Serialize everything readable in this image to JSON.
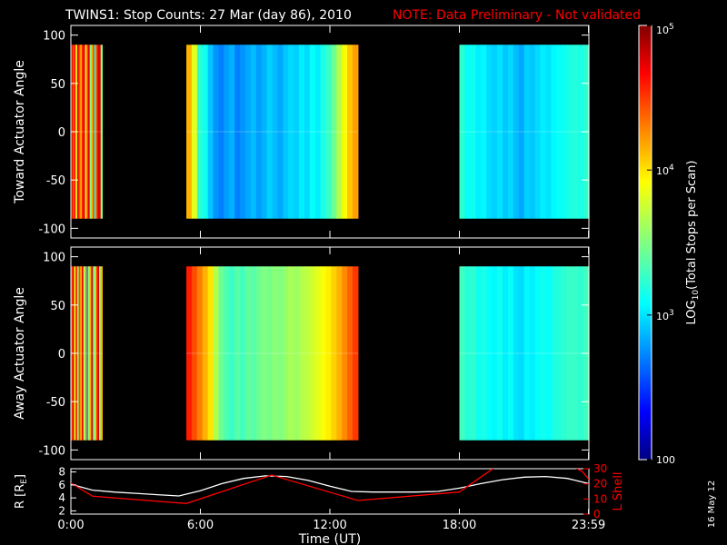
{
  "title": {
    "main": "TWINS1: Stop Counts: 27 Mar (day  86), 2010",
    "note": "NOTE: Data Preliminary - Not validated",
    "note_color": "#ff0000"
  },
  "chart_data": [
    {
      "type": "heatmap",
      "ylabel": "Toward Actuator Angle",
      "xlim": [
        0,
        24
      ],
      "ylim": [
        -110,
        110
      ],
      "yticks": [
        -100,
        -50,
        0,
        50,
        100
      ],
      "ytick_labels": [
        "-100",
        "-50",
        "0",
        "50",
        "100"
      ],
      "angle_range": [
        -90,
        90
      ],
      "segments": [
        {
          "t_start": 0.0,
          "t_end": 1.45,
          "profile": [
            9,
            8,
            8.5,
            6,
            9,
            8,
            7,
            8.5,
            9,
            6,
            8,
            9,
            5,
            7,
            8,
            4,
            8,
            9,
            9,
            5
          ]
        },
        {
          "t_start": 5.35,
          "t_end": 13.3,
          "profile": [
            7,
            6,
            4.2,
            3.9,
            3.2,
            2.7,
            2.5,
            2.8,
            3.0,
            2.5,
            2.7,
            2.9,
            3.1,
            2.8,
            3.0,
            3.3,
            3.1,
            2.9,
            3.2,
            3.4,
            3.3,
            3.6,
            3.4,
            3.8,
            3.6,
            4.0,
            4.3,
            4.8,
            5.5,
            6.2,
            6.8,
            7.2
          ]
        },
        {
          "t_start": 18.0,
          "t_end": 24.0,
          "profile": [
            4.2,
            3.8,
            3.9,
            3.6,
            3.7,
            3.4,
            3.3,
            3.5,
            3.2,
            3.4,
            3.1,
            2.9,
            3.3,
            3.2,
            3.4,
            3.6,
            3.5,
            3.7,
            3.8,
            3.9,
            4.0,
            4.1,
            4.0,
            4.2
          ]
        }
      ]
    },
    {
      "type": "heatmap",
      "ylabel": "Away Actuator Angle",
      "xlim": [
        0,
        24
      ],
      "ylim": [
        -110,
        110
      ],
      "yticks": [
        -100,
        -50,
        0,
        50,
        100
      ],
      "ytick_labels": [
        "-100",
        "-50",
        "0",
        "50",
        "100"
      ],
      "angle_range": [
        -90,
        90
      ],
      "segments": [
        {
          "t_start": 0.0,
          "t_end": 1.45,
          "profile": [
            8,
            9,
            6,
            8.5,
            5,
            8,
            7,
            9,
            6,
            3.5,
            8,
            5,
            7,
            9,
            4,
            6,
            8,
            9,
            5,
            7
          ]
        },
        {
          "t_start": 5.35,
          "t_end": 13.3,
          "profile": [
            8.5,
            8,
            7.5,
            7,
            6.5,
            5.5,
            4.8,
            4.5,
            4.3,
            4.6,
            4.4,
            4.7,
            4.6,
            4.8,
            5.0,
            4.9,
            5.1,
            5.0,
            5.2,
            5.4,
            5.3,
            5.5,
            5.6,
            5.8,
            6.0,
            6.2,
            6.4,
            6.7,
            7.0,
            7.4,
            7.8,
            8.2
          ]
        },
        {
          "t_start": 18.0,
          "t_end": 24.0,
          "profile": [
            4.4,
            4.1,
            4.2,
            3.9,
            4.0,
            3.8,
            3.7,
            3.9,
            3.6,
            3.8,
            3.5,
            3.4,
            3.7,
            3.6,
            3.8,
            3.9,
            3.8,
            4.0,
            4.1,
            4.2,
            4.3,
            4.3,
            4.2,
            4.4
          ]
        }
      ]
    },
    {
      "type": "line",
      "ylabel": "R [R",
      "ylabel_sub": "E",
      "ylabel_close": "]",
      "ylabel_right": "L Shell",
      "xlabel": "Time (UT)",
      "xlim": [
        0,
        24
      ],
      "xticks": [
        0,
        6,
        12,
        18,
        23.983
      ],
      "xtick_labels": [
        "0:00",
        "6:00",
        "12:00",
        "18:00",
        "23:59"
      ],
      "ylim": [
        1.5,
        8.5
      ],
      "yticks": [
        2,
        4,
        6,
        8
      ],
      "ytick_labels": [
        "2",
        "4",
        "6",
        "8"
      ],
      "ylim_right": [
        0,
        30
      ],
      "yticks_right": [
        0,
        10,
        20,
        30
      ],
      "ytick_labels_right": [
        "0",
        "10",
        "20",
        "30"
      ],
      "series": [
        {
          "color": "#ffffff",
          "axis": "left",
          "x": [
            0,
            1,
            2,
            3,
            4,
            5,
            6,
            7,
            8,
            9,
            10,
            11,
            12,
            13,
            14,
            15,
            16,
            17,
            18,
            19,
            20,
            21,
            22,
            23,
            24
          ],
          "y": [
            6.1,
            5.2,
            4.9,
            4.7,
            4.5,
            4.3,
            5.1,
            6.2,
            7.0,
            7.4,
            7.3,
            6.7,
            5.8,
            5.0,
            4.9,
            4.9,
            4.9,
            5.0,
            5.5,
            6.2,
            6.8,
            7.2,
            7.3,
            7.0,
            6.2
          ]
        },
        {
          "color": "#ff0000",
          "axis": "right",
          "x": [
            0,
            1,
            5.35,
            9.3,
            13.3,
            18.0,
            19.6
          ],
          "y": [
            20.6,
            11.8,
            7.0,
            25.8,
            9.0,
            14.6,
            30.5
          ]
        },
        {
          "color": "#ff0000",
          "axis": "right",
          "x": [
            23.4,
            23.7,
            24
          ],
          "y": [
            30.5,
            28.0,
            23.0
          ]
        }
      ]
    }
  ],
  "colorbar": {
    "label": "LOG",
    "label_sub": "10",
    "label_rest": "(Total Stops per Scan)",
    "ticks": [
      {
        "base": "10",
        "exp": "5",
        "pos": 0.0
      },
      {
        "base": "10",
        "exp": "4",
        "pos": 0.333
      },
      {
        "base": "10",
        "exp": "3",
        "pos": 0.667
      },
      {
        "base": "100",
        "exp": "",
        "pos": 1.0
      }
    ]
  },
  "date_stamp": "16 May 12"
}
